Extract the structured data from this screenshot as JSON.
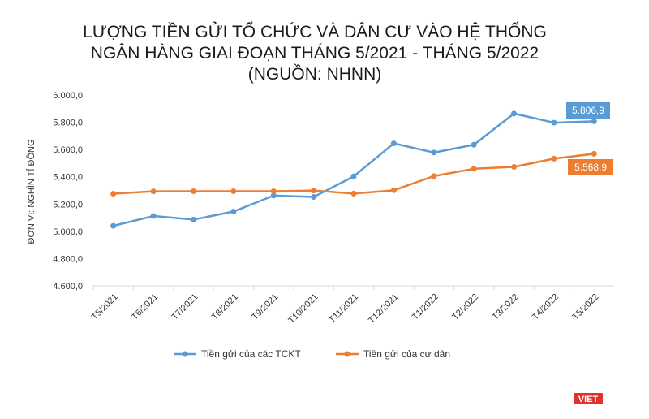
{
  "chart_data": {
    "type": "line",
    "title_lines": [
      "LƯỢNG TIỀN GỬI TỔ CHỨC VÀ DÂN CƯ VÀO HỆ THỐNG",
      "NGÂN HÀNG GIAI ĐOẠN THÁNG 5/2021 - THÁNG 5/2022",
      "(NGUỒN: NHNN)"
    ],
    "ylabel": "ĐƠN VỊ: NGHÌN TỈ ĐỒNG",
    "xlabel": "",
    "categories": [
      "T5/2021",
      "T6/2021",
      "T7/2021",
      "T8/2021",
      "T9/2021",
      "T10/2021",
      "T11/2021",
      "T12/2021",
      "T1/2022",
      "T2/2022",
      "T3/2022",
      "T4/2022",
      "T5/2022"
    ],
    "ylim": [
      4600,
      6000
    ],
    "y_ticks": [
      4600,
      4800,
      5000,
      5200,
      5400,
      5600,
      5800,
      6000
    ],
    "y_tick_labels": [
      "4.600,0",
      "4.800,0",
      "5.000,0",
      "5.200,0",
      "5.400,0",
      "5.600,0",
      "5.800,0",
      "6.000,0"
    ],
    "grid": false,
    "legend": "bottom",
    "series": [
      {
        "name": "Tiền gửi của các TCKT",
        "color": "#5B9BD5",
        "values": [
          5040,
          5112,
          5086,
          5145,
          5262,
          5252,
          5403,
          5645,
          5578,
          5635,
          5864,
          5797,
          5806.9
        ],
        "end_label": "5.806,9"
      },
      {
        "name": "Tiền gửi của cư dân",
        "color": "#ED7D31",
        "values": [
          5276,
          5293,
          5294,
          5294,
          5294,
          5299,
          5277,
          5301,
          5405,
          5459,
          5473,
          5533,
          5568.9
        ],
        "end_label": "5.568,9"
      }
    ]
  },
  "logo": {
    "text": "VIET",
    "color": "#E0312E"
  }
}
